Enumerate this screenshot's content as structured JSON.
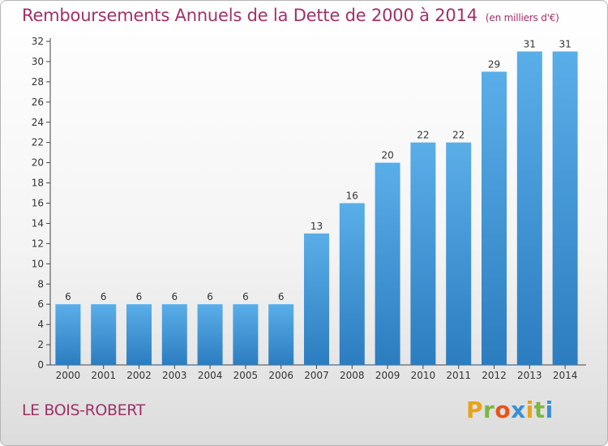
{
  "header": {
    "title": "Remboursements Annuels de la Dette de 2000 à 2014",
    "unit": "(en milliers d'€)"
  },
  "footer": {
    "location": "LE BOIS-ROBERT",
    "logo": "Proxiti"
  },
  "colors": {
    "bar_light": "#5aaee8",
    "bar_dark": "#2c7dc0",
    "title": "#a0306a",
    "logo_letters": [
      "#e8a317",
      "#7ab842",
      "#e8541a",
      "#3a8fd6",
      "#e8a317",
      "#7ab842",
      "#3a8fd6"
    ]
  },
  "chart_data": {
    "type": "bar",
    "title": "Remboursements Annuels de la Dette de 2000 à 2014",
    "xlabel": "",
    "ylabel": "",
    "categories": [
      "2000",
      "2001",
      "2002",
      "2003",
      "2004",
      "2005",
      "2006",
      "2007",
      "2008",
      "2009",
      "2010",
      "2011",
      "2012",
      "2013",
      "2014"
    ],
    "values": [
      6,
      6,
      6,
      6,
      6,
      6,
      6,
      13,
      16,
      20,
      22,
      22,
      29,
      31,
      31
    ],
    "ylim": [
      0,
      32
    ],
    "yticks": [
      0,
      2,
      4,
      6,
      8,
      10,
      12,
      14,
      16,
      18,
      20,
      22,
      24,
      26,
      28,
      30,
      32
    ],
    "grid": false,
    "legend": "none"
  }
}
